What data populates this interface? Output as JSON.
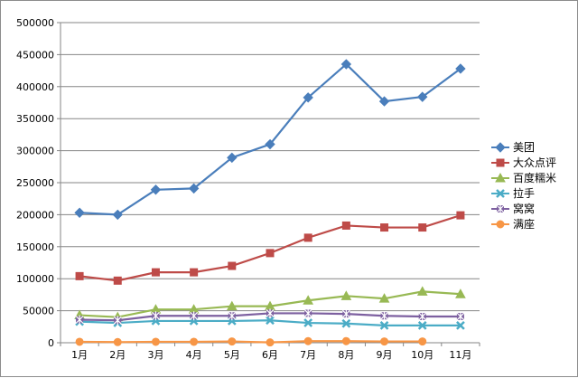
{
  "chart_data": {
    "type": "line",
    "title": "",
    "xlabel": "",
    "ylabel": "",
    "categories": [
      "1月",
      "2月",
      "3月",
      "4月",
      "5月",
      "6月",
      "7月",
      "8月",
      "9月",
      "10月",
      "11月"
    ],
    "ylim": [
      0,
      500000
    ],
    "yticks": [
      0,
      50000,
      100000,
      150000,
      200000,
      250000,
      300000,
      350000,
      400000,
      450000,
      500000
    ],
    "ytick_labels": [
      "0",
      "50000",
      "100000",
      "150000",
      "200000",
      "250000",
      "300000",
      "350000",
      "400000",
      "450000",
      "500000"
    ],
    "grid": "horizontal",
    "legend_position": "right",
    "series": [
      {
        "name": "美团",
        "color": "#4a7ebb",
        "marker": "diamond",
        "values": [
          203000,
          200000,
          239000,
          241000,
          289000,
          310000,
          383000,
          435000,
          377000,
          384000,
          428000
        ]
      },
      {
        "name": "大众点评",
        "color": "#be4b48",
        "marker": "square",
        "values": [
          104000,
          97000,
          110000,
          110000,
          120000,
          140000,
          164000,
          183000,
          180000,
          180000,
          199000
        ]
      },
      {
        "name": "百度糯米",
        "color": "#98b954",
        "marker": "triangle",
        "values": [
          43000,
          40000,
          52000,
          52000,
          57000,
          57000,
          66000,
          73000,
          69000,
          80000,
          76000
        ]
      },
      {
        "name": "拉手",
        "color": "#4bacc6",
        "marker": "x",
        "values": [
          33000,
          31000,
          34000,
          34000,
          34000,
          35000,
          31000,
          30000,
          27000,
          27000,
          27000
        ]
      },
      {
        "name": "窝窝",
        "color": "#7d60a0",
        "marker": "star",
        "values": [
          36000,
          35000,
          42000,
          42000,
          42000,
          46000,
          46000,
          45000,
          42000,
          41000,
          41000
        ]
      },
      {
        "name": "满座",
        "color": "#f79646",
        "marker": "circle",
        "values": [
          1500,
          1000,
          1500,
          1500,
          2000,
          500,
          2500,
          2500,
          2000,
          2000,
          null
        ]
      }
    ]
  }
}
